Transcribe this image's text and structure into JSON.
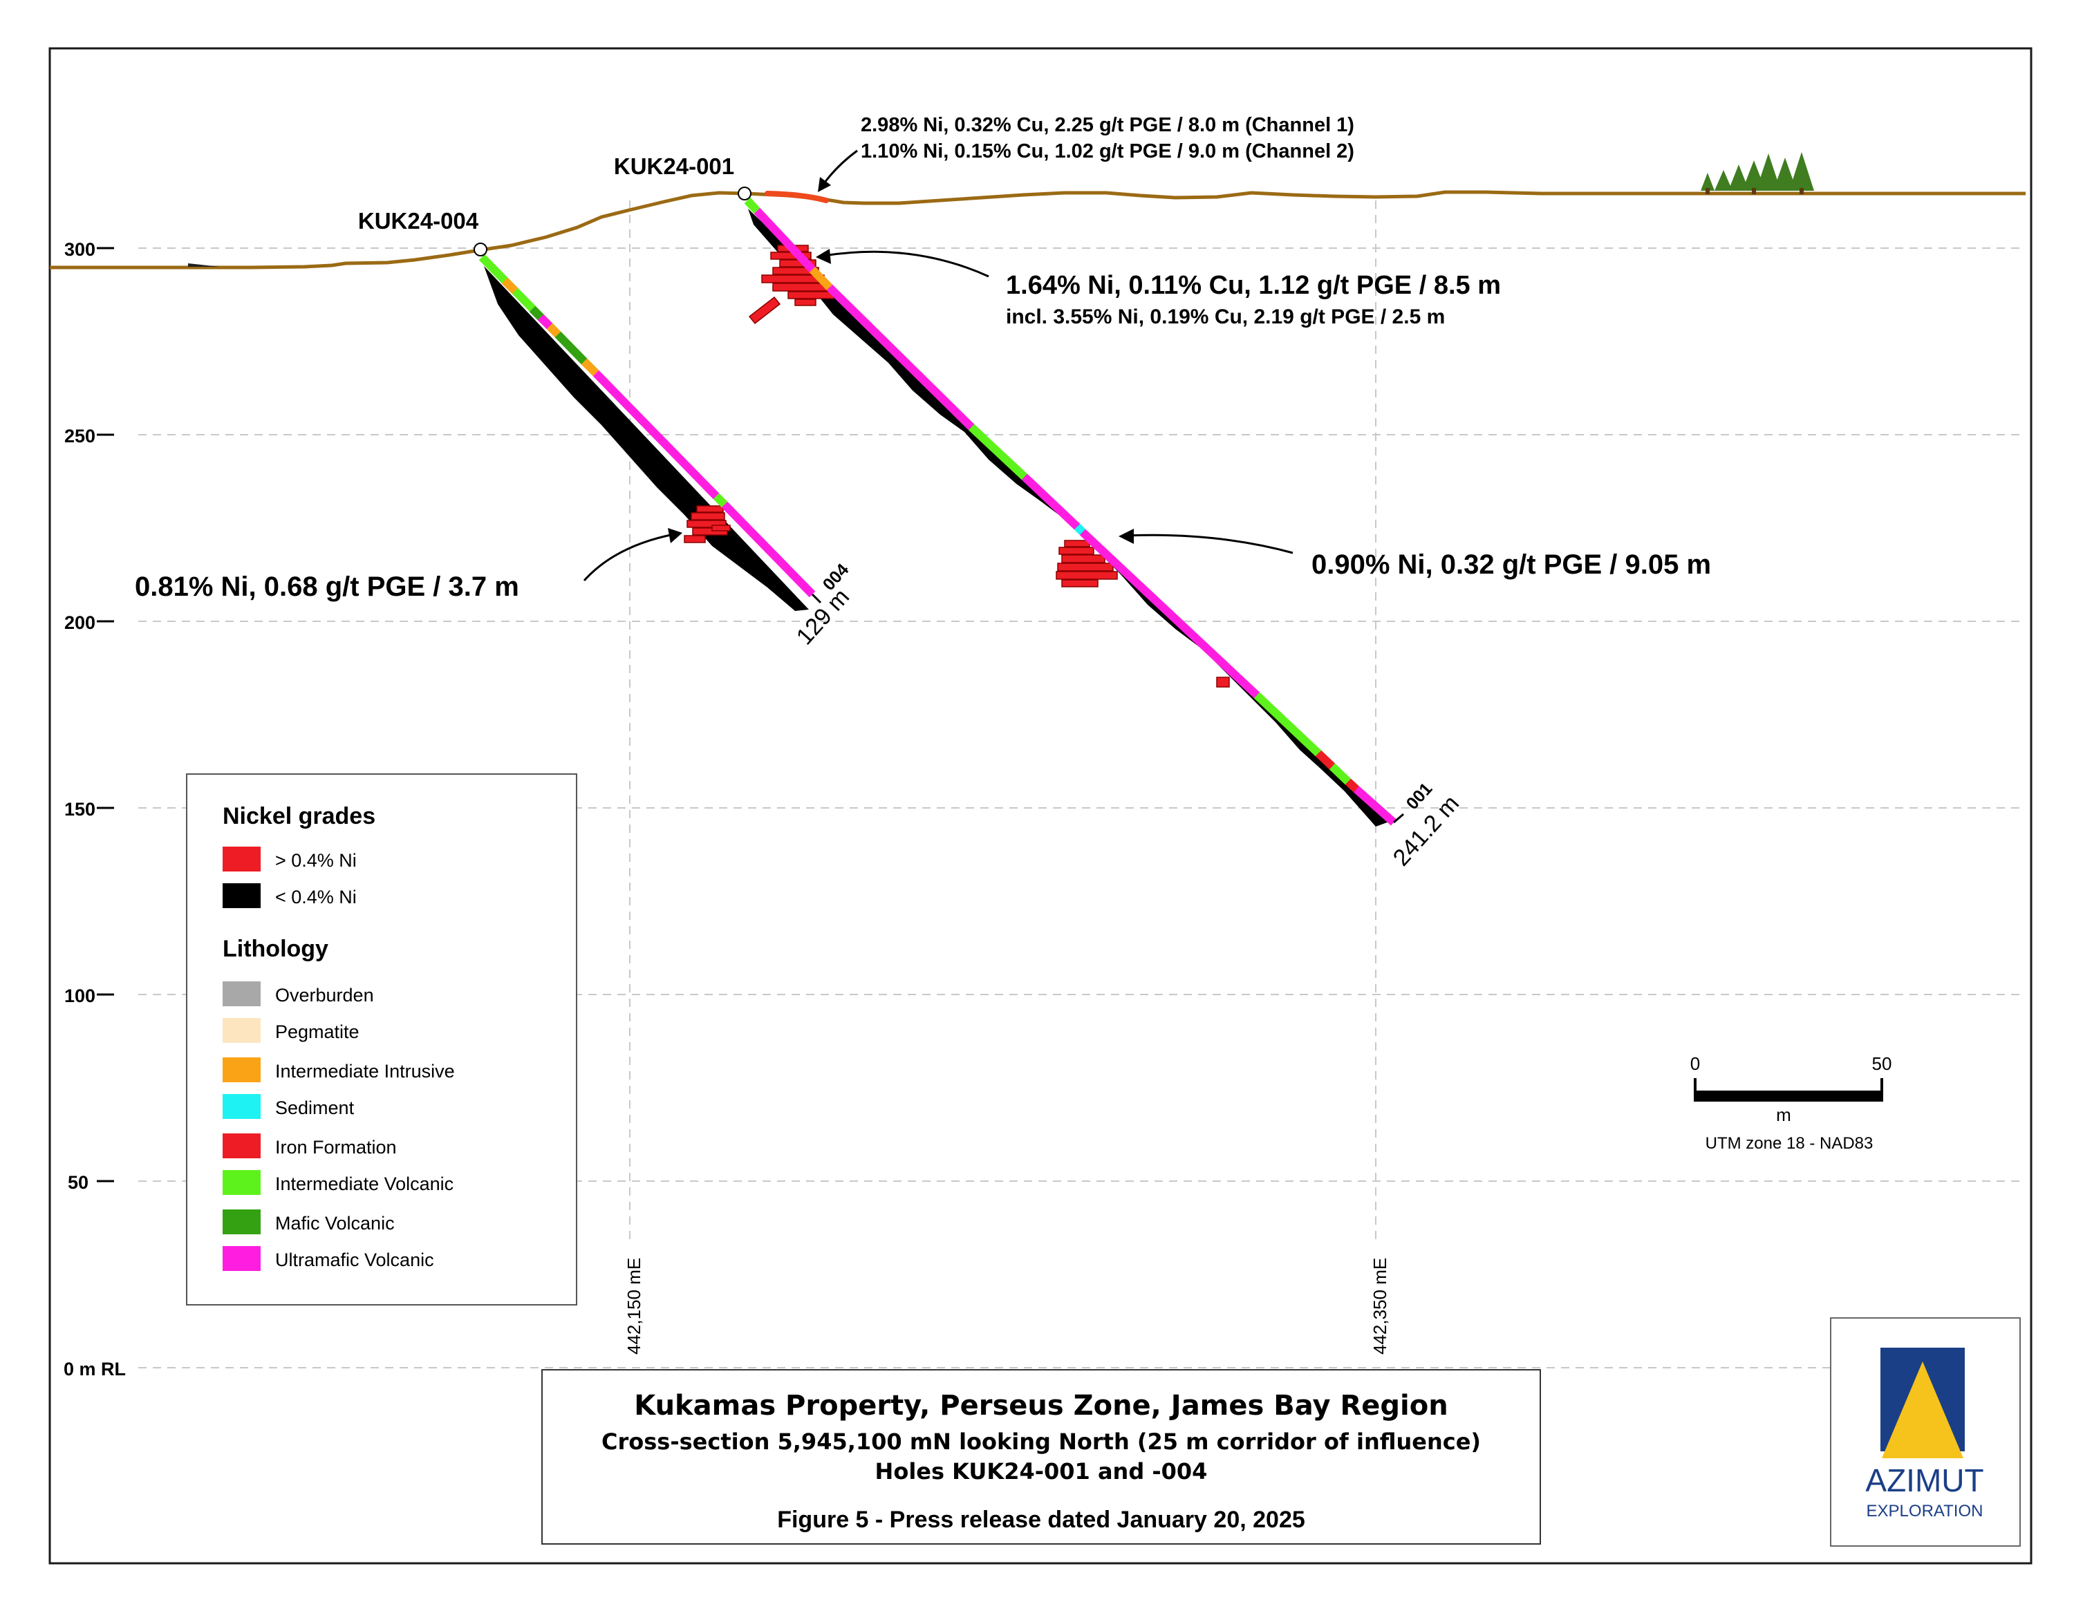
{
  "axis": {
    "elevation_ticks": [
      {
        "value": 300,
        "label": "300"
      },
      {
        "value": 250,
        "label": "250"
      },
      {
        "value": 200,
        "label": "200"
      },
      {
        "value": 150,
        "label": "150"
      },
      {
        "value": 100,
        "label": "100"
      },
      {
        "value": 50,
        "label": "50"
      },
      {
        "value": 0,
        "label": "0 m RL"
      }
    ],
    "easting_labels": [
      "442,150 mE",
      "442,350 mE"
    ]
  },
  "holes": {
    "kuk24_004": {
      "name": "KUK24-004",
      "end_label": "004",
      "length_label": "129 m"
    },
    "kuk24_001": {
      "name": "KUK24-001",
      "end_label": "001",
      "length_label": "241.2 m"
    }
  },
  "annotations": {
    "channel_1": "2.98% Ni, 0.32% Cu, 2.25 g/t PGE / 8.0 m (Channel 1)",
    "channel_2": "1.10% Ni, 0.15% Cu, 1.02 g/t PGE / 9.0 m (Channel 2)",
    "hole001_upper": "1.64% Ni, 0.11% Cu, 1.12 g/t PGE / 8.5 m",
    "hole001_upper_incl": "incl. 3.55% Ni, 0.19% Cu, 2.19 g/t PGE / 2.5 m",
    "hole001_lower": "0.90% Ni, 0.32 g/t PGE / 9.05 m",
    "hole004": "0.81% Ni, 0.68 g/t PGE / 3.7 m"
  },
  "legend": {
    "nickel_title": "Nickel grades",
    "nickel_items": [
      {
        "label": "> 0.4% Ni",
        "color": "#ee1c24"
      },
      {
        "label": "< 0.4% Ni",
        "color": "#000000"
      }
    ],
    "lithology_title": "Lithology",
    "lithology_items": [
      {
        "label": "Overburden",
        "color": "#a8a8a8"
      },
      {
        "label": "Pegmatite",
        "color": "#fde5c0"
      },
      {
        "label": "Intermediate Intrusive",
        "color": "#fba317"
      },
      {
        "label": "Sediment",
        "color": "#1ef2f2"
      },
      {
        "label": "Iron Formation",
        "color": "#ee1c24"
      },
      {
        "label": "Intermediate Volcanic",
        "color": "#5ef21c"
      },
      {
        "label": "Mafic Volcanic",
        "color": "#33a112"
      },
      {
        "label": "Ultramafic Volcanic",
        "color": "#ff1ee0"
      }
    ]
  },
  "scale_bar": {
    "start_label": "0",
    "end_label": "50",
    "unit_label": "m",
    "projection": "UTM zone 18 - NAD83"
  },
  "title_block": {
    "title": "Kukamas Property, Perseus Zone, James Bay Region",
    "subtitle_1": "Cross-section 5,945,100 mN looking North (25 m corridor of influence)",
    "subtitle_2": "Holes KUK24-001 and -004",
    "figure_caption": "Figure 5 - Press release dated January 20, 2025"
  },
  "logo": {
    "name": "AZIMUT",
    "sub": "EXPLORATION"
  },
  "colors": {
    "topography": "#9b6a14",
    "grid": "#c8c8c8",
    "channel": "#ee4a1c",
    "high_grade": "#ee1c24",
    "low_grade": "#000000",
    "logo_blue": "#1b3f87",
    "logo_yellow": "#f6c21c",
    "tree": "#3f7d20"
  }
}
